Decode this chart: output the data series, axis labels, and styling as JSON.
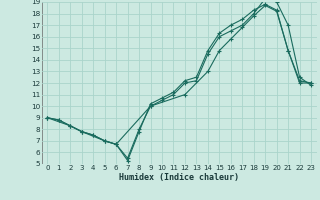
{
  "xlabel": "Humidex (Indice chaleur)",
  "xlim": [
    -0.5,
    23.5
  ],
  "ylim": [
    5,
    19
  ],
  "xticks": [
    0,
    1,
    2,
    3,
    4,
    5,
    6,
    7,
    8,
    9,
    10,
    11,
    12,
    13,
    14,
    15,
    16,
    17,
    18,
    19,
    20,
    21,
    22,
    23
  ],
  "yticks": [
    5,
    6,
    7,
    8,
    9,
    10,
    11,
    12,
    13,
    14,
    15,
    16,
    17,
    18,
    19
  ],
  "bg_color": "#cce9e1",
  "line_color": "#1a6b5e",
  "grid_color": "#aad4cb",
  "line1_x": [
    0,
    1,
    2,
    3,
    4,
    5,
    6,
    7,
    8,
    9,
    10,
    11,
    12,
    13,
    14,
    15,
    16,
    17,
    18,
    19,
    20,
    21,
    22,
    23
  ],
  "line1_y": [
    9.0,
    8.8,
    8.3,
    7.8,
    7.5,
    7.0,
    6.7,
    5.3,
    7.8,
    10.2,
    10.7,
    11.2,
    12.2,
    12.5,
    14.8,
    16.3,
    17.0,
    17.5,
    18.3,
    18.8,
    18.3,
    14.8,
    12.2,
    12.0
  ],
  "line2_x": [
    0,
    1,
    2,
    3,
    4,
    5,
    6,
    7,
    8,
    9,
    10,
    11,
    12,
    13,
    14,
    15,
    16,
    17,
    18,
    19,
    20,
    21,
    22,
    23
  ],
  "line2_y": [
    9.0,
    8.8,
    8.3,
    7.8,
    7.5,
    7.0,
    6.7,
    5.5,
    8.0,
    10.0,
    10.5,
    11.0,
    12.0,
    12.2,
    14.5,
    16.0,
    16.5,
    17.0,
    18.0,
    19.3,
    19.0,
    17.0,
    12.5,
    11.8
  ],
  "line3_x": [
    0,
    2,
    3,
    5,
    6,
    9,
    12,
    14,
    15,
    16,
    17,
    18,
    19,
    20,
    21,
    22,
    23
  ],
  "line3_y": [
    9.0,
    8.3,
    7.8,
    7.0,
    6.7,
    10.0,
    11.0,
    13.0,
    14.8,
    15.8,
    16.8,
    17.8,
    18.7,
    18.2,
    14.8,
    12.0,
    12.0
  ]
}
